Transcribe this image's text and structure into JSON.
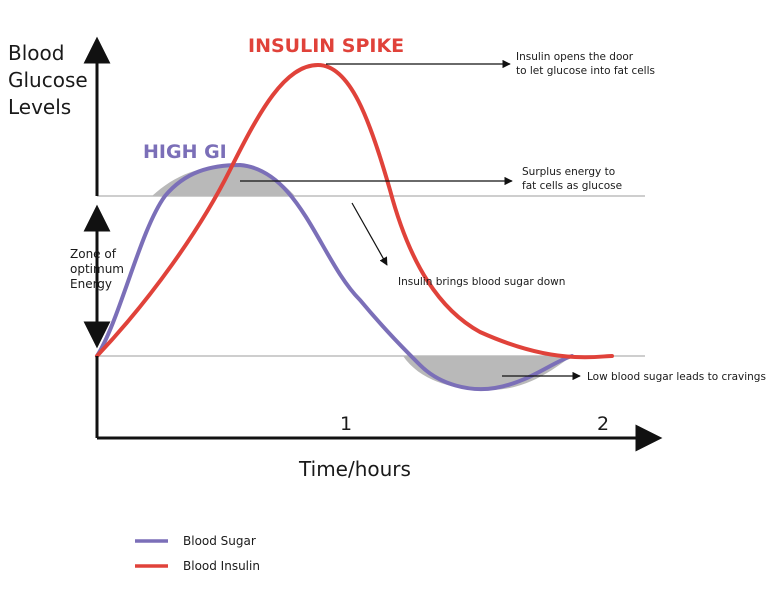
{
  "chart_data": {
    "type": "line",
    "title": "",
    "ylabel_lines": [
      "Blood",
      "Glucose",
      "Levels"
    ],
    "xlabel": "Time/hours",
    "x_ticks": [
      "1",
      "2"
    ],
    "xlim": [
      0,
      2.16
    ],
    "zone_label_lines": [
      "Zone of",
      "optimum",
      "Energy"
    ],
    "curve_titles": {
      "sugar": "HIGH GI",
      "insulin": "INSULIN SPIKE"
    },
    "series": [
      {
        "name": "Blood Sugar",
        "color": "#7b6fb8",
        "points": [
          [
            0.0,
            0.0
          ],
          [
            0.12,
            0.62
          ],
          [
            0.25,
            0.92
          ],
          [
            0.45,
            1.2
          ],
          [
            0.6,
            1.05
          ],
          [
            0.8,
            0.6
          ],
          [
            1.0,
            0.15
          ],
          [
            1.2,
            -0.3
          ],
          [
            1.4,
            -0.4
          ],
          [
            1.6,
            -0.3
          ],
          [
            1.75,
            0.0
          ]
        ]
      },
      {
        "name": "Blood Insulin",
        "color": "#e0423a",
        "points": [
          [
            0.0,
            0.0
          ],
          [
            0.2,
            0.6
          ],
          [
            0.4,
            1.2
          ],
          [
            0.65,
            2.0
          ],
          [
            0.9,
            2.0
          ],
          [
            1.1,
            1.0
          ],
          [
            1.3,
            0.4
          ],
          [
            1.55,
            0.08
          ],
          [
            1.75,
            0.0
          ],
          [
            1.9,
            0.0
          ]
        ]
      }
    ],
    "reference_lines": [
      0,
      1
    ],
    "annotations": [
      {
        "id": "insulin_door",
        "lines": [
          "Insulin opens the door",
          "to let glucose into fat cells"
        ]
      },
      {
        "id": "surplus",
        "lines": [
          "Surplus energy to",
          "fat cells as glucose"
        ]
      },
      {
        "id": "brings_down",
        "lines": [
          "Insulin brings blood sugar down"
        ]
      },
      {
        "id": "low_sugar",
        "lines": [
          "Low blood sugar leads to cravings"
        ]
      }
    ],
    "legend_position": "bottom-left",
    "colors": {
      "sugar": "#7b6fb8",
      "insulin": "#e0423a",
      "shade": "#b9b9b9",
      "reference": "#b0b0b0",
      "axis": "#111111"
    }
  }
}
